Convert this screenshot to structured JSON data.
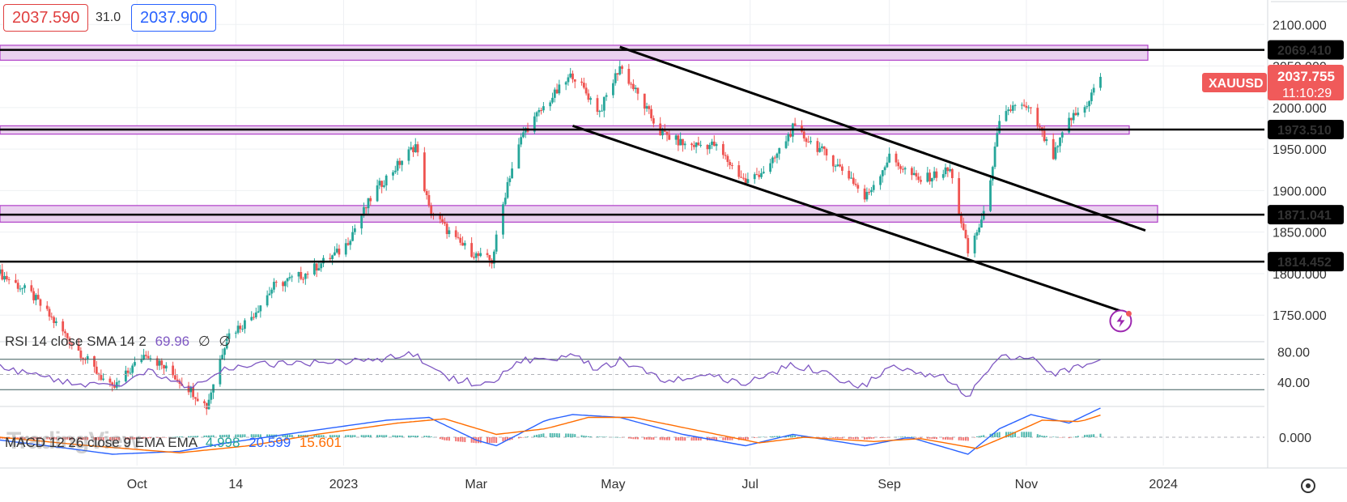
{
  "header": {
    "bid": "2037.590",
    "spread": "31.0",
    "ask": "2037.900"
  },
  "symbol": "XAUUSD",
  "last_price": "2037.755",
  "countdown": "11:10:29",
  "colors": {
    "up": "#26a69a",
    "down": "#ef5350",
    "zone_fill": "#ead1ef",
    "zone_border": "#b040c8",
    "rsi": "#7e57c2",
    "macd": "#2962ff",
    "signal": "#ff6d00",
    "price_tag": "#f05a5a"
  },
  "time_axis": [
    "Oct",
    "14",
    "2023",
    "Mar",
    "May",
    "Jul",
    "Sep",
    "Nov",
    "2024"
  ],
  "indicators": {
    "rsi": {
      "label": "RSI 14 close SMA 14 2",
      "value": "69.96",
      "extra1": "∅",
      "extra2": "∅"
    },
    "macd": {
      "label": "MACD 12 26 close 9 EMA EMA",
      "hist": "4.998",
      "macd": "20.599",
      "signal": "15.601"
    }
  },
  "watermark": "TradingView",
  "chart_data": {
    "type": "candlestick",
    "symbol": "XAUUSD",
    "x_range": [
      "2022-08-01",
      "2024-02-15"
    ],
    "y_range": [
      1720,
      2110
    ],
    "y_ticks": [
      2100,
      2050,
      2000,
      1950,
      1900,
      1850,
      1800,
      1750
    ],
    "y_tick_labels": [
      "2100.000",
      "2050.000",
      "2000.000",
      "1950.000",
      "1900.000",
      "1850.000",
      "1800.000",
      "1750.000"
    ],
    "series_close": [
      [
        "2022-08-01",
        1800
      ],
      [
        "2022-08-15",
        1775
      ],
      [
        "2022-09-01",
        1720
      ],
      [
        "2022-09-20",
        1660
      ],
      [
        "2022-10-05",
        1705
      ],
      [
        "2022-10-25",
        1660
      ],
      [
        "2022-11-01",
        1640
      ],
      [
        "2022-11-10",
        1725
      ],
      [
        "2022-11-20",
        1745
      ],
      [
        "2022-12-01",
        1785
      ],
      [
        "2022-12-15",
        1800
      ],
      [
        "2023-01-01",
        1830
      ],
      [
        "2023-01-15",
        1900
      ],
      [
        "2023-02-02",
        1955
      ],
      [
        "2023-02-08",
        1878
      ],
      [
        "2023-02-20",
        1840
      ],
      [
        "2023-03-01",
        1822
      ],
      [
        "2023-03-08",
        1815
      ],
      [
        "2023-03-15",
        1910
      ],
      [
        "2023-03-22",
        1970
      ],
      [
        "2023-04-03",
        2010
      ],
      [
        "2023-04-13",
        2040
      ],
      [
        "2023-04-25",
        1995
      ],
      [
        "2023-05-04",
        2050
      ],
      [
        "2023-05-12",
        2015
      ],
      [
        "2023-05-22",
        1970
      ],
      [
        "2023-06-02",
        1955
      ],
      [
        "2023-06-15",
        1955
      ],
      [
        "2023-06-29",
        1910
      ],
      [
        "2023-07-10",
        1930
      ],
      [
        "2023-07-20",
        1975
      ],
      [
        "2023-08-01",
        1950
      ],
      [
        "2023-08-15",
        1915
      ],
      [
        "2023-08-21",
        1890
      ],
      [
        "2023-09-01",
        1940
      ],
      [
        "2023-09-14",
        1912
      ],
      [
        "2023-09-28",
        1925
      ],
      [
        "2023-10-06",
        1825
      ],
      [
        "2023-10-13",
        1870
      ],
      [
        "2023-10-20",
        1980
      ],
      [
        "2023-10-27",
        2005
      ],
      [
        "2023-11-03",
        1995
      ],
      [
        "2023-11-13",
        1940
      ],
      [
        "2023-11-20",
        1985
      ],
      [
        "2023-11-27",
        2000
      ],
      [
        "2023-12-04",
        2037.755
      ]
    ],
    "horizontal_levels": [
      "2069.410",
      "1973.510",
      "1871.041",
      "1814.452"
    ],
    "zones": [
      {
        "top": 2075,
        "bottom": 2057
      },
      {
        "top": 1978,
        "bottom": 1968
      },
      {
        "top": 1882,
        "bottom": 1862
      }
    ],
    "channel_lines": [
      {
        "from": [
          "2023-05-04",
          2073
        ],
        "to": [
          "2023-12-24",
          1852
        ]
      },
      {
        "from": [
          "2023-04-13",
          1978
        ],
        "to": [
          "2023-12-13",
          1755
        ]
      }
    ],
    "rsi": {
      "y_ticks": [
        "80.00",
        "40.00"
      ],
      "levels": [
        70,
        50,
        30
      ],
      "values": [
        [
          "2022-08-01",
          60
        ],
        [
          "2022-09-01",
          40
        ],
        [
          "2022-09-20",
          34
        ],
        [
          "2022-10-05",
          55
        ],
        [
          "2022-10-25",
          32
        ],
        [
          "2022-11-10",
          60
        ],
        [
          "2022-12-01",
          64
        ],
        [
          "2023-01-01",
          66
        ],
        [
          "2023-02-02",
          76
        ],
        [
          "2023-02-15",
          45
        ],
        [
          "2023-03-08",
          36
        ],
        [
          "2023-03-20",
          68
        ],
        [
          "2023-04-13",
          74
        ],
        [
          "2023-04-25",
          56
        ],
        [
          "2023-05-04",
          70
        ],
        [
          "2023-05-22",
          44
        ],
        [
          "2023-06-15",
          48
        ],
        [
          "2023-06-29",
          38
        ],
        [
          "2023-07-20",
          64
        ],
        [
          "2023-08-21",
          34
        ],
        [
          "2023-09-01",
          62
        ],
        [
          "2023-09-28",
          44
        ],
        [
          "2023-10-06",
          22
        ],
        [
          "2023-10-20",
          73
        ],
        [
          "2023-11-03",
          72
        ],
        [
          "2023-11-13",
          48
        ],
        [
          "2023-12-04",
          69.96
        ]
      ]
    },
    "macd": {
      "y_ticks": [
        "0.000"
      ],
      "y_range": [
        -20,
        20
      ],
      "macd_values": [
        [
          "2022-08-01",
          -2
        ],
        [
          "2022-09-01",
          -8
        ],
        [
          "2022-09-20",
          -12
        ],
        [
          "2022-10-20",
          -10
        ],
        [
          "2022-11-10",
          -4
        ],
        [
          "2022-12-15",
          4
        ],
        [
          "2023-01-20",
          12
        ],
        [
          "2023-02-08",
          14
        ],
        [
          "2023-03-01",
          -2
        ],
        [
          "2023-03-10",
          -6
        ],
        [
          "2023-04-01",
          12
        ],
        [
          "2023-04-13",
          16
        ],
        [
          "2023-05-04",
          14
        ],
        [
          "2023-06-01",
          2
        ],
        [
          "2023-06-29",
          -6
        ],
        [
          "2023-07-20",
          2
        ],
        [
          "2023-08-21",
          -6
        ],
        [
          "2023-09-10",
          0
        ],
        [
          "2023-10-06",
          -12
        ],
        [
          "2023-10-20",
          6
        ],
        [
          "2023-11-03",
          16
        ],
        [
          "2023-11-20",
          10
        ],
        [
          "2023-12-04",
          20.599
        ]
      ],
      "signal_values": [
        [
          "2022-08-01",
          0
        ],
        [
          "2022-09-10",
          -6
        ],
        [
          "2022-10-20",
          -11
        ],
        [
          "2022-11-20",
          -6
        ],
        [
          "2022-12-20",
          2
        ],
        [
          "2023-01-25",
          10
        ],
        [
          "2023-02-15",
          13
        ],
        [
          "2023-03-10",
          2
        ],
        [
          "2023-04-01",
          6
        ],
        [
          "2023-04-20",
          14
        ],
        [
          "2023-05-10",
          14
        ],
        [
          "2023-06-10",
          4
        ],
        [
          "2023-07-05",
          -4
        ],
        [
          "2023-07-25",
          0
        ],
        [
          "2023-08-25",
          -3
        ],
        [
          "2023-09-15",
          -1
        ],
        [
          "2023-10-10",
          -8
        ],
        [
          "2023-10-25",
          2
        ],
        [
          "2023-11-08",
          12
        ],
        [
          "2023-11-25",
          11
        ],
        [
          "2023-12-04",
          15.601
        ]
      ]
    }
  }
}
